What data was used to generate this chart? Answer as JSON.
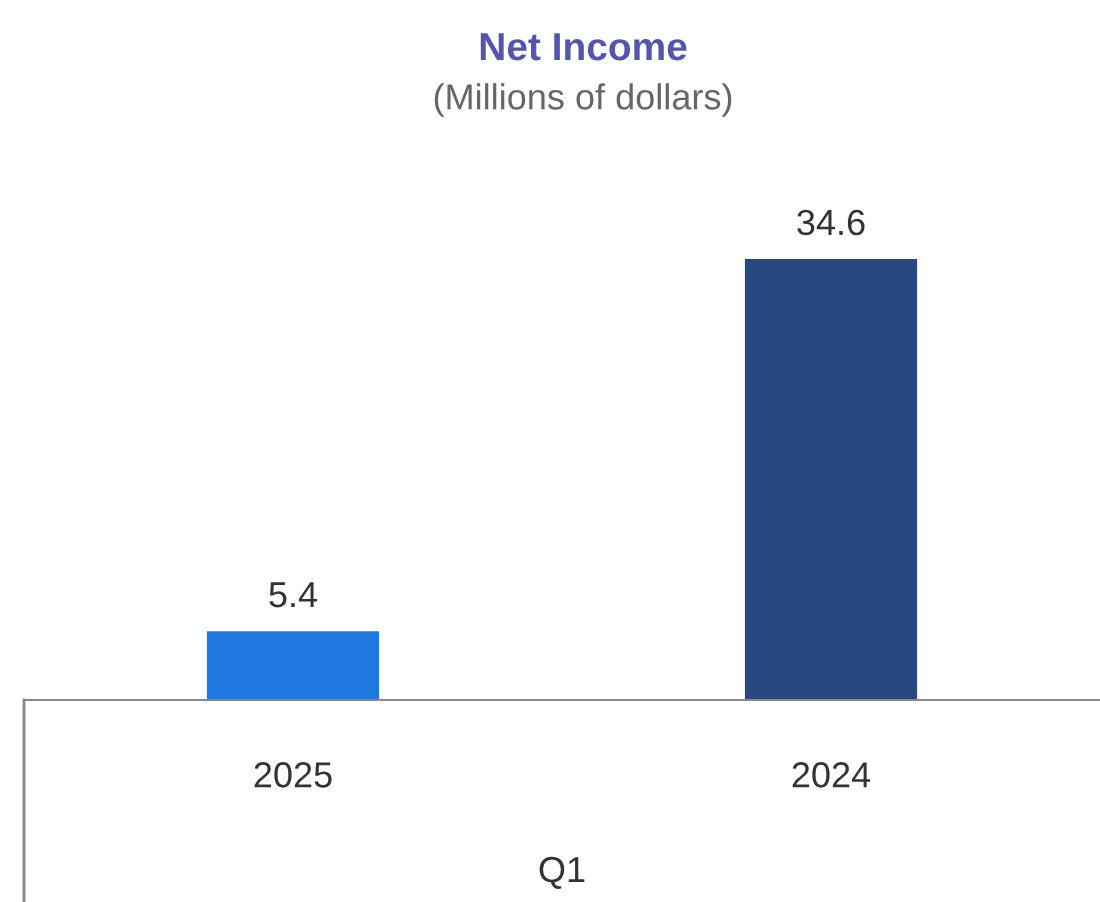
{
  "chart_data": {
    "type": "bar",
    "title": "Net Income",
    "subtitle": "(Millions of dollars)",
    "xlabel": "Q1",
    "categories": [
      "2025",
      "2024"
    ],
    "values": [
      5.4,
      34.6
    ],
    "colors": [
      "#1f78e0",
      "#27497f"
    ],
    "data_labels": true,
    "grid": false,
    "legend": false
  }
}
